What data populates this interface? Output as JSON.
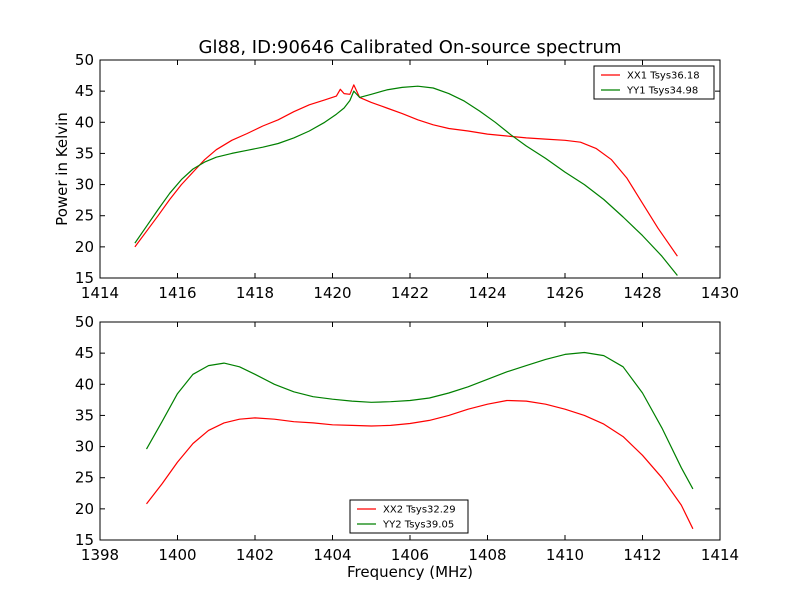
{
  "figure": {
    "title": "Gl88, ID:90646 Calibrated On-source spectrum"
  },
  "chart_data": [
    {
      "type": "line",
      "xlabel": "",
      "ylabel": "Power in Kelvin",
      "xlim": [
        1414,
        1430
      ],
      "ylim": [
        15,
        50
      ],
      "xticks": [
        1414,
        1416,
        1418,
        1420,
        1422,
        1424,
        1426,
        1428,
        1430
      ],
      "yticks": [
        15,
        20,
        25,
        30,
        35,
        40,
        45,
        50
      ],
      "legend_position": "top-right",
      "series": [
        {
          "name": "XX1 Tsys36.18",
          "color": "#ff0000",
          "points": [
            [
              1414.9,
              20.0
            ],
            [
              1415.2,
              22.5
            ],
            [
              1415.5,
              25.0
            ],
            [
              1415.8,
              27.6
            ],
            [
              1416.1,
              30.0
            ],
            [
              1416.4,
              32.0
            ],
            [
              1416.7,
              34.0
            ],
            [
              1417.0,
              35.6
            ],
            [
              1417.4,
              37.1
            ],
            [
              1417.8,
              38.2
            ],
            [
              1418.2,
              39.4
            ],
            [
              1418.6,
              40.4
            ],
            [
              1419.0,
              41.7
            ],
            [
              1419.4,
              42.8
            ],
            [
              1419.8,
              43.6
            ],
            [
              1420.1,
              44.2
            ],
            [
              1420.2,
              45.3
            ],
            [
              1420.3,
              44.6
            ],
            [
              1420.45,
              44.5
            ],
            [
              1420.55,
              46.0
            ],
            [
              1420.7,
              44.0
            ],
            [
              1421.0,
              43.2
            ],
            [
              1421.4,
              42.3
            ],
            [
              1421.8,
              41.4
            ],
            [
              1422.2,
              40.4
            ],
            [
              1422.6,
              39.6
            ],
            [
              1423.0,
              39.0
            ],
            [
              1423.5,
              38.6
            ],
            [
              1424.0,
              38.1
            ],
            [
              1424.5,
              37.8
            ],
            [
              1425.0,
              37.5
            ],
            [
              1425.5,
              37.3
            ],
            [
              1426.0,
              37.1
            ],
            [
              1426.4,
              36.8
            ],
            [
              1426.8,
              35.8
            ],
            [
              1427.2,
              34.0
            ],
            [
              1427.6,
              31.0
            ],
            [
              1428.0,
              27.0
            ],
            [
              1428.4,
              23.0
            ],
            [
              1428.9,
              18.5
            ]
          ]
        },
        {
          "name": "YY1 Tsys34.98",
          "color": "#008000",
          "points": [
            [
              1414.9,
              20.6
            ],
            [
              1415.2,
              23.3
            ],
            [
              1415.5,
              26.0
            ],
            [
              1415.8,
              28.6
            ],
            [
              1416.1,
              30.8
            ],
            [
              1416.4,
              32.5
            ],
            [
              1416.7,
              33.6
            ],
            [
              1417.0,
              34.4
            ],
            [
              1417.4,
              35.0
            ],
            [
              1417.8,
              35.5
            ],
            [
              1418.2,
              36.0
            ],
            [
              1418.6,
              36.6
            ],
            [
              1419.0,
              37.5
            ],
            [
              1419.4,
              38.6
            ],
            [
              1419.8,
              40.0
            ],
            [
              1420.1,
              41.3
            ],
            [
              1420.3,
              42.3
            ],
            [
              1420.45,
              43.5
            ],
            [
              1420.55,
              45.0
            ],
            [
              1420.7,
              44.0
            ],
            [
              1421.0,
              44.5
            ],
            [
              1421.4,
              45.2
            ],
            [
              1421.8,
              45.6
            ],
            [
              1422.2,
              45.8
            ],
            [
              1422.6,
              45.5
            ],
            [
              1423.0,
              44.6
            ],
            [
              1423.4,
              43.4
            ],
            [
              1423.8,
              41.8
            ],
            [
              1424.2,
              40.0
            ],
            [
              1424.6,
              38.0
            ],
            [
              1425.0,
              36.2
            ],
            [
              1425.5,
              34.2
            ],
            [
              1426.0,
              32.0
            ],
            [
              1426.5,
              30.0
            ],
            [
              1427.0,
              27.6
            ],
            [
              1427.5,
              24.8
            ],
            [
              1428.0,
              21.8
            ],
            [
              1428.5,
              18.5
            ],
            [
              1428.9,
              15.4
            ]
          ]
        }
      ]
    },
    {
      "type": "line",
      "xlabel": "Frequency (MHz)",
      "ylabel": "",
      "xlim": [
        1398,
        1414
      ],
      "ylim": [
        15,
        50
      ],
      "xticks": [
        1398,
        1400,
        1402,
        1404,
        1406,
        1408,
        1410,
        1412,
        1414
      ],
      "yticks": [
        15,
        20,
        25,
        30,
        35,
        40,
        45,
        50
      ],
      "legend_position": "bottom-center",
      "series": [
        {
          "name": "XX2 Tsys32.29",
          "color": "#ff0000",
          "points": [
            [
              1399.2,
              20.8
            ],
            [
              1399.6,
              24.0
            ],
            [
              1400.0,
              27.5
            ],
            [
              1400.4,
              30.5
            ],
            [
              1400.8,
              32.6
            ],
            [
              1401.2,
              33.8
            ],
            [
              1401.6,
              34.4
            ],
            [
              1402.0,
              34.6
            ],
            [
              1402.5,
              34.4
            ],
            [
              1403.0,
              34.0
            ],
            [
              1403.5,
              33.8
            ],
            [
              1404.0,
              33.5
            ],
            [
              1404.5,
              33.4
            ],
            [
              1405.0,
              33.3
            ],
            [
              1405.5,
              33.4
            ],
            [
              1406.0,
              33.7
            ],
            [
              1406.5,
              34.2
            ],
            [
              1407.0,
              35.0
            ],
            [
              1407.5,
              36.0
            ],
            [
              1408.0,
              36.8
            ],
            [
              1408.5,
              37.4
            ],
            [
              1409.0,
              37.3
            ],
            [
              1409.5,
              36.8
            ],
            [
              1410.0,
              36.0
            ],
            [
              1410.5,
              35.0
            ],
            [
              1411.0,
              33.6
            ],
            [
              1411.5,
              31.6
            ],
            [
              1412.0,
              28.6
            ],
            [
              1412.5,
              25.0
            ],
            [
              1413.0,
              20.6
            ],
            [
              1413.3,
              16.8
            ]
          ]
        },
        {
          "name": "YY2 Tsys39.05",
          "color": "#008000",
          "points": [
            [
              1399.2,
              29.6
            ],
            [
              1399.6,
              34.0
            ],
            [
              1400.0,
              38.5
            ],
            [
              1400.4,
              41.6
            ],
            [
              1400.8,
              43.0
            ],
            [
              1401.2,
              43.4
            ],
            [
              1401.6,
              42.8
            ],
            [
              1402.0,
              41.6
            ],
            [
              1402.5,
              40.0
            ],
            [
              1403.0,
              38.8
            ],
            [
              1403.5,
              38.0
            ],
            [
              1404.0,
              37.6
            ],
            [
              1404.5,
              37.3
            ],
            [
              1405.0,
              37.1
            ],
            [
              1405.5,
              37.2
            ],
            [
              1406.0,
              37.4
            ],
            [
              1406.5,
              37.8
            ],
            [
              1407.0,
              38.6
            ],
            [
              1407.5,
              39.6
            ],
            [
              1408.0,
              40.8
            ],
            [
              1408.5,
              42.0
            ],
            [
              1409.0,
              43.0
            ],
            [
              1409.5,
              44.0
            ],
            [
              1410.0,
              44.8
            ],
            [
              1410.5,
              45.1
            ],
            [
              1411.0,
              44.6
            ],
            [
              1411.5,
              42.8
            ],
            [
              1412.0,
              38.6
            ],
            [
              1412.5,
              33.0
            ],
            [
              1413.0,
              26.6
            ],
            [
              1413.3,
              23.2
            ]
          ]
        }
      ]
    }
  ]
}
